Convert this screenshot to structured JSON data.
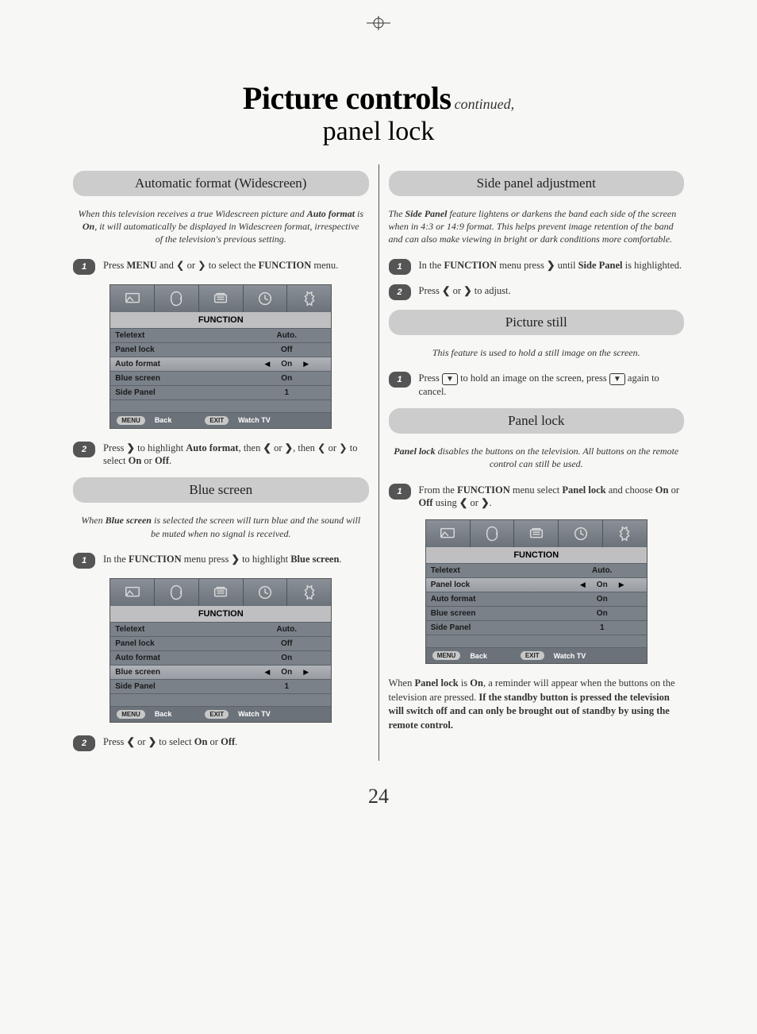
{
  "page_number": "24",
  "title": {
    "main": "Picture controls",
    "cont": "continued,",
    "sub": "panel lock"
  },
  "left": {
    "auto_format": {
      "header": "Automatic format (Widescreen)",
      "intro": "When this television receives a true Widescreen picture and Auto format is On, it will automatically be displayed in Widescreen format, irrespective of the television's previous setting.",
      "step1": {
        "num": "1",
        "pre": "Press ",
        "b1": "MENU",
        "mid": " and ❮ or ❯ to select the ",
        "b2": "FUNCTION",
        "post": " menu."
      },
      "step2": {
        "num": "2",
        "text": "Press ❯ to highlight Auto format, then ❮ or ❯ to select On or Off."
      },
      "step2_pre": "Press ",
      "step2_b1": "❯",
      "step2_mid1": " to highlight ",
      "step2_b2": "Auto format",
      "step2_mid2": ", then ❮ or ❯ to select ",
      "step2_b3": "On",
      "step2_mid3": " or ",
      "step2_b4": "Off",
      "step2_post": "."
    },
    "blue_screen": {
      "header": "Blue screen",
      "intro": "When Blue screen is selected the screen will turn blue and the sound will be muted when no signal is received.",
      "step1_pre": "In the ",
      "step1_b1": "FUNCTION",
      "step1_mid": " menu press ❯ to highlight ",
      "step1_b2": "Blue screen",
      "step1_post": ".",
      "step1_num": "1",
      "step2_num": "2",
      "step2_pre": "Press ❮ or ❯ to select ",
      "step2_b1": "On",
      "step2_mid": " or ",
      "step2_b2": "Off",
      "step2_post": "."
    }
  },
  "right": {
    "side_panel": {
      "header": "Side panel adjustment",
      "intro": "The Side Panel feature lightens or darkens the band each side of the screen when in 4:3 or 14:9 format. This helps prevent image retention of the band and can also make viewing in bright or dark conditions more comfortable.",
      "step1_num": "1",
      "step1_pre": "In the ",
      "step1_b1": "FUNCTION",
      "step1_mid": " menu press ❯ until ",
      "step1_b2": "Side Panel",
      "step1_post": " is highlighted.",
      "step2_num": "2",
      "step2": "Press ❮ or ❯ to adjust."
    },
    "picture_still": {
      "header": "Picture still",
      "intro": "This feature is used to hold a still image on the screen.",
      "step1_num": "1",
      "step1_pre": "Press ",
      "step1_icon": "▼",
      "step1_mid": " to hold an image on the screen, press ",
      "step1_post": " again to cancel."
    },
    "panel_lock": {
      "header": "Panel lock",
      "intro": "Panel lock disables the buttons on the television. All buttons on the remote control can still be used.",
      "step1_num": "1",
      "step1_pre": "From the ",
      "step1_b1": "FUNCTION",
      "step1_mid1": " menu select ",
      "step1_b2": "Panel lock",
      "step1_mid2": " and choose ",
      "step1_b3": "On",
      "step1_mid3": " or ",
      "step1_b4": "Off",
      "step1_mid4": " using ❮ or ❯.",
      "note_pre": "When ",
      "note_b1": "Panel lock",
      "note_mid1": " is ",
      "note_b2": "On",
      "note_mid2": ", a reminder will appear when the buttons on the television are pressed. ",
      "note_b3": "If the standby button is pressed the television will switch off and can only be brought out of standby by using the remote control."
    }
  },
  "osd": {
    "title": "FUNCTION",
    "foot_back_btn": "MENU",
    "foot_back": "Back",
    "foot_watch_btn": "EXIT",
    "foot_watch": "Watch TV",
    "menu1": {
      "rows": [
        {
          "label": "Teletext",
          "value": "Auto.",
          "sel": false,
          "arrows": false
        },
        {
          "label": "Panel lock",
          "value": "Off",
          "sel": false,
          "arrows": false
        },
        {
          "label": "Auto format",
          "value": "On",
          "sel": true,
          "arrows": true
        },
        {
          "label": "Blue screen",
          "value": "On",
          "sel": false,
          "arrows": false
        },
        {
          "label": "Side Panel",
          "value": "1",
          "sel": false,
          "arrows": false
        }
      ]
    },
    "menu2": {
      "rows": [
        {
          "label": "Teletext",
          "value": "Auto.",
          "sel": false,
          "arrows": false
        },
        {
          "label": "Panel lock",
          "value": "Off",
          "sel": false,
          "arrows": false
        },
        {
          "label": "Auto format",
          "value": "On",
          "sel": false,
          "arrows": false
        },
        {
          "label": "Blue screen",
          "value": "On",
          "sel": true,
          "arrows": true
        },
        {
          "label": "Side Panel",
          "value": "1",
          "sel": false,
          "arrows": false
        }
      ]
    },
    "menu3": {
      "rows": [
        {
          "label": "Teletext",
          "value": "Auto.",
          "sel": false,
          "arrows": false
        },
        {
          "label": "Panel lock",
          "value": "On",
          "sel": true,
          "arrows": true
        },
        {
          "label": "Auto format",
          "value": "On",
          "sel": false,
          "arrows": false
        },
        {
          "label": "Blue screen",
          "value": "On",
          "sel": false,
          "arrows": false
        },
        {
          "label": "Side Panel",
          "value": "1",
          "sel": false,
          "arrows": false
        }
      ]
    }
  },
  "colors": {
    "header_bg": "#cccccc",
    "osd_bg": "#6b7279",
    "osd_row_bg": "#7a8189",
    "osd_sel_bg": "#b0b3b8"
  }
}
